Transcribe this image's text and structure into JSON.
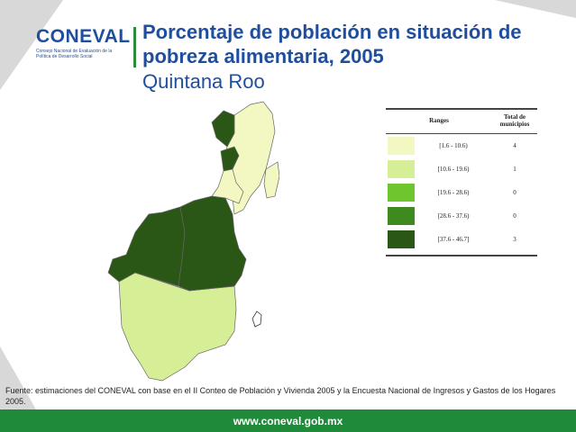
{
  "logo": {
    "name": "CONEVAL",
    "subtitle": "Consejo Nacional de Evaluación de la Política de Desarrollo Social"
  },
  "header": {
    "title": "Porcentaje de población en situación de pobreza alimentaria, 2005",
    "subtitle": "Quintana Roo"
  },
  "legend": {
    "header_ranges": "Ranges",
    "header_total": "Total de municipios",
    "items": [
      {
        "range": "[1.6 - 10.6)",
        "count": "4",
        "color": "#f3f8c2"
      },
      {
        "range": "[10.6 - 19.6)",
        "count": "1",
        "color": "#d6ef96"
      },
      {
        "range": "[19.6 - 28.6)",
        "count": "0",
        "color": "#6dc62e"
      },
      {
        "range": "[28.6 - 37.6)",
        "count": "0",
        "color": "#3e8a1f"
      },
      {
        "range": "[37.6 - 46.7]",
        "count": "3",
        "color": "#2b5716"
      }
    ]
  },
  "map": {
    "region": "Quintana Roo",
    "region_classes": {
      "north_mainland": "[37.6 - 46.7]",
      "cancun_coast": "[1.6 - 10.6)",
      "cozumel": "[1.6 - 10.6)",
      "solidaridad": "[1.6 - 10.6)",
      "felipe_carrillo_puerto": "[37.6 - 46.7]",
      "jose_maria_morelos": "[37.6 - 46.7]",
      "othon_p_blanco": "[10.6 - 19.6)"
    }
  },
  "source": "Fuente: estimaciones del CONEVAL con base en el II Conteo de Población y Vivienda 2005 y la Encuesta Nacional de Ingresos y Gastos de los Hogares 2005.",
  "footer": {
    "url": "www.coneval.gob.mx"
  }
}
